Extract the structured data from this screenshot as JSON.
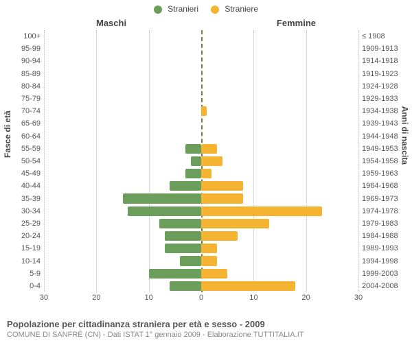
{
  "chart": {
    "type": "population-pyramid",
    "legend": [
      {
        "label": "Stranieri",
        "color": "#6a9e5a"
      },
      {
        "label": "Straniere",
        "color": "#f4b431"
      }
    ],
    "side_titles": {
      "male": "Maschi",
      "female": "Femmine"
    },
    "yaxis_left_title": "Fasce di età",
    "yaxis_right_title": "Anni di nascita",
    "xmax": 30,
    "xticks": [
      30,
      20,
      10,
      0,
      10,
      20,
      30
    ],
    "colors": {
      "male": "#6a9e5a",
      "female": "#f4b431",
      "grid": "#bbbbbb",
      "center": "#7a7a4a",
      "bg": "#ffffff"
    },
    "font_sizes": {
      "legend": 12,
      "labels": 11,
      "axis_title": 12,
      "footer_title": 13,
      "footer_sub": 11
    },
    "rows": [
      {
        "age": "100+",
        "birth": "≤ 1908",
        "m": 0,
        "f": 0
      },
      {
        "age": "95-99",
        "birth": "1909-1913",
        "m": 0,
        "f": 0
      },
      {
        "age": "90-94",
        "birth": "1914-1918",
        "m": 0,
        "f": 0
      },
      {
        "age": "85-89",
        "birth": "1919-1923",
        "m": 0,
        "f": 0
      },
      {
        "age": "80-84",
        "birth": "1924-1928",
        "m": 0,
        "f": 0
      },
      {
        "age": "75-79",
        "birth": "1929-1933",
        "m": 0,
        "f": 0
      },
      {
        "age": "70-74",
        "birth": "1934-1938",
        "m": 0,
        "f": 1
      },
      {
        "age": "65-69",
        "birth": "1939-1943",
        "m": 0,
        "f": 0
      },
      {
        "age": "60-64",
        "birth": "1944-1948",
        "m": 0,
        "f": 0
      },
      {
        "age": "55-59",
        "birth": "1949-1953",
        "m": 3,
        "f": 3
      },
      {
        "age": "50-54",
        "birth": "1954-1958",
        "m": 2,
        "f": 4
      },
      {
        "age": "45-49",
        "birth": "1959-1963",
        "m": 3,
        "f": 2
      },
      {
        "age": "40-44",
        "birth": "1964-1968",
        "m": 6,
        "f": 8
      },
      {
        "age": "35-39",
        "birth": "1969-1973",
        "m": 15,
        "f": 8
      },
      {
        "age": "30-34",
        "birth": "1974-1978",
        "m": 14,
        "f": 23
      },
      {
        "age": "25-29",
        "birth": "1979-1983",
        "m": 8,
        "f": 13
      },
      {
        "age": "20-24",
        "birth": "1984-1988",
        "m": 7,
        "f": 7
      },
      {
        "age": "15-19",
        "birth": "1989-1993",
        "m": 7,
        "f": 3
      },
      {
        "age": "10-14",
        "birth": "1994-1998",
        "m": 4,
        "f": 3
      },
      {
        "age": "5-9",
        "birth": "1999-2003",
        "m": 10,
        "f": 5
      },
      {
        "age": "0-4",
        "birth": "2004-2008",
        "m": 6,
        "f": 18
      }
    ]
  },
  "footer": {
    "title": "Popolazione per cittadinanza straniera per età e sesso - 2009",
    "subtitle": "COMUNE DI SANFRÈ (CN) - Dati ISTAT 1° gennaio 2009 - Elaborazione TUTTITALIA.IT"
  }
}
